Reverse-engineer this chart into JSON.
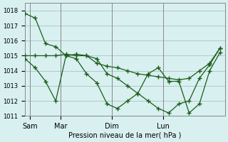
{
  "title": "",
  "xlabel": "Pression niveau de la mer( hPa )",
  "ylabel": "",
  "bg_color": "#d8f0f0",
  "grid_color": "#b0c8c8",
  "line_color": "#1a5c1a",
  "ylim": [
    1011,
    1018.5
  ],
  "yticks": [
    1011,
    1012,
    1013,
    1014,
    1015,
    1016,
    1017,
    1018
  ],
  "x_tick_positions": [
    0.5,
    3.5,
    8.5,
    13.5
  ],
  "x_tick_labels": [
    "Sam",
    "Mar",
    "Dim",
    "Lun"
  ],
  "x_vlines": [
    0.5,
    3.5,
    8.5,
    13.5
  ],
  "series": [
    [
      1017.8,
      1017.5,
      1015.8,
      1015.6,
      1015.0,
      1015.1,
      1015.0,
      1014.8,
      1013.8,
      1013.5,
      1013.0,
      1012.5,
      1012.0,
      1011.5,
      1011.2,
      1011.8,
      1012.0,
      1013.5,
      1014.4,
      1015.5
    ],
    [
      1014.8,
      1014.2,
      1013.3,
      1012.0,
      1015.0,
      1014.8,
      1013.8,
      1013.2,
      1011.8,
      1011.5,
      1012.0,
      1012.5,
      1013.8,
      1014.2,
      1013.3,
      1013.3,
      1011.2,
      1011.8,
      1014.0,
      1015.2
    ],
    [
      1015.0,
      1015.0,
      1015.0,
      1015.0,
      1015.1,
      1015.0,
      1015.0,
      1014.5,
      1014.3,
      1014.2,
      1014.0,
      1013.8,
      1013.7,
      1013.6,
      1013.5,
      1013.4,
      1013.5,
      1014.0,
      1014.5,
      1015.5
    ]
  ],
  "xlim": [
    0,
    19.5
  ]
}
